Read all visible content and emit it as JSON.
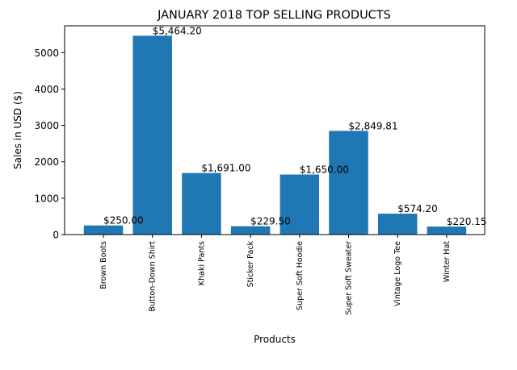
{
  "chart_data": {
    "type": "bar",
    "title": "JANUARY 2018 TOP SELLING  PRODUCTS",
    "xlabel": "Products",
    "ylabel": "Sales in USD ($)",
    "categories": [
      "Brown Boots",
      "Button-Down Shirt",
      "Khaki Pants",
      "Sticker Pack",
      "Super Soft Hoodie",
      "Super Soft Sweater",
      "Vintage Logo Tee",
      "Winter Hat"
    ],
    "values": [
      250.0,
      5464.2,
      1691.0,
      229.5,
      1650.0,
      2849.81,
      574.2,
      220.15
    ],
    "data_labels": [
      "$250.00",
      "$5,464.20",
      "$1,691.00",
      "$229.50",
      "$1,650.00",
      "$2,849.81",
      "$574.20",
      "$220.15"
    ],
    "ylim": [
      0,
      5737.41
    ],
    "yticks": [
      0,
      1000,
      2000,
      3000,
      4000,
      5000
    ],
    "ytick_labels": [
      "0",
      "1000",
      "2000",
      "3000",
      "4000",
      "5000"
    ],
    "grid": false,
    "bar_color": "#1f77b4"
  }
}
